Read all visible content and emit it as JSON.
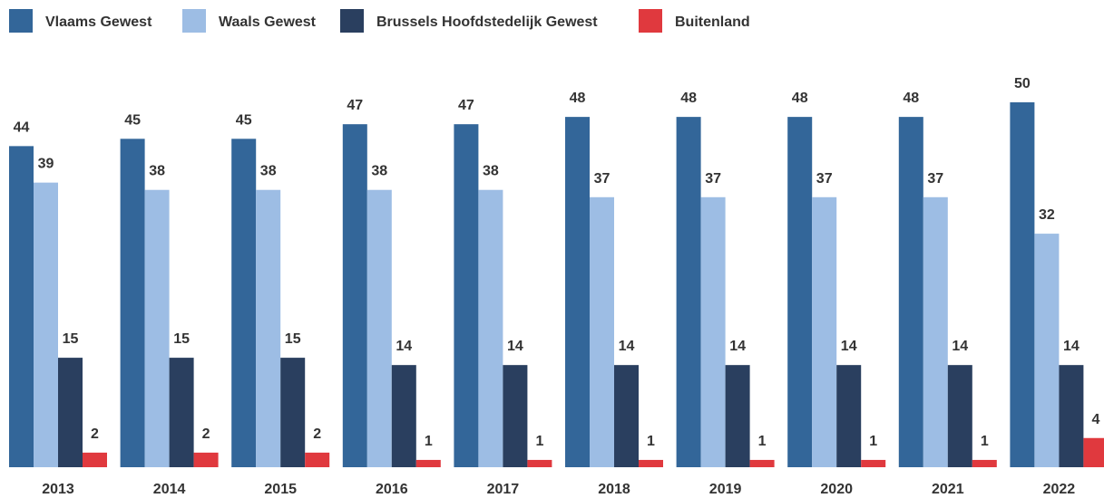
{
  "chart_data": {
    "type": "bar",
    "categories": [
      "2013",
      "2014",
      "2015",
      "2016",
      "2017",
      "2018",
      "2019",
      "2020",
      "2021",
      "2022"
    ],
    "series": [
      {
        "name": "Vlaams Gewest",
        "color": "#336699",
        "values": [
          44,
          45,
          45,
          47,
          47,
          48,
          48,
          48,
          48,
          50
        ]
      },
      {
        "name": "Waals Gewest",
        "color": "#9dbde4",
        "values": [
          39,
          38,
          38,
          38,
          38,
          37,
          37,
          37,
          37,
          32
        ]
      },
      {
        "name": "Brussels Hoofdstedelijk Gewest",
        "color": "#2a3f5f",
        "values": [
          15,
          15,
          15,
          14,
          14,
          14,
          14,
          14,
          14,
          14
        ]
      },
      {
        "name": "Buitenland",
        "color": "#e0393e",
        "values": [
          2,
          2,
          2,
          1,
          1,
          1,
          1,
          1,
          1,
          4
        ]
      }
    ],
    "ylim": [
      0,
      50
    ]
  }
}
